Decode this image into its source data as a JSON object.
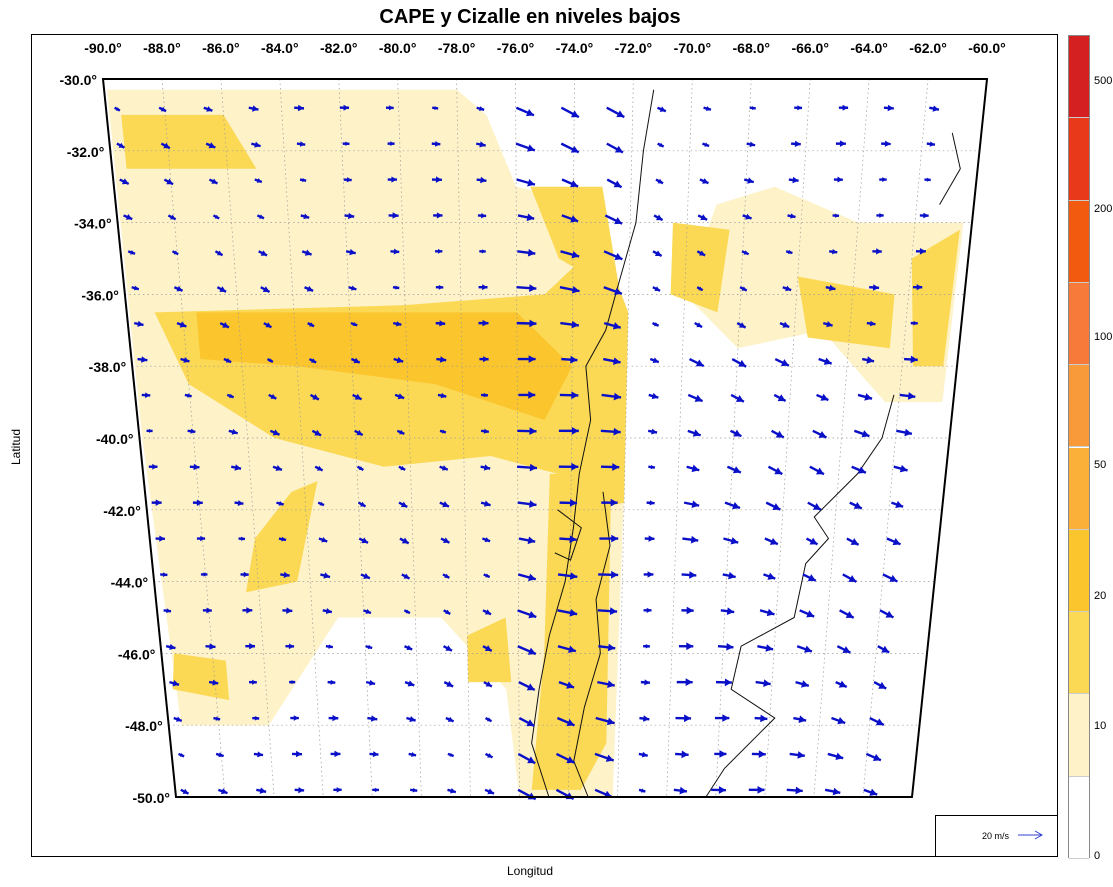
{
  "title": "CAPE y Cizalle en niveles bajos",
  "xlabel": "Longitud",
  "ylabel": "Latitud",
  "lon_labels": [
    "-90.0°",
    "-88.0°",
    "-86.0°",
    "-84.0°",
    "-82.0°",
    "-80.0°",
    "-78.0°",
    "-76.0°",
    "-74.0°",
    "-72.0°",
    "-70.0°",
    "-68.0°",
    "-66.0°",
    "-64.0°",
    "-62.0°",
    "-60.0°"
  ],
  "lat_labels": [
    "-30.0°",
    "-32.0°",
    "-34.0°",
    "-36.0°",
    "-38.0°",
    "-40.0°",
    "-42.0°",
    "-44.0°",
    "-46.0°",
    "-48.0°",
    "-50.0°"
  ],
  "vector_legend": "20 m/s",
  "colorbar": {
    "ticks": [
      "500",
      "200",
      "100",
      "50",
      "20",
      "10",
      "0"
    ],
    "colors": [
      "#d42020",
      "#e83a1a",
      "#f25a10",
      "#f77a3a",
      "#f99a3a",
      "#fbb03a",
      "#fbc52e",
      "#fbd955",
      "#fef2c8",
      "#ffffff"
    ]
  },
  "map": {
    "lon_range": [
      -90,
      -60
    ],
    "lat_range": [
      -30,
      -50
    ],
    "vector_color": "#0a10c8",
    "cape_colors": {
      "low": "#fef2c8",
      "mid": "#fbd955",
      "high": "#fbc52e"
    }
  }
}
